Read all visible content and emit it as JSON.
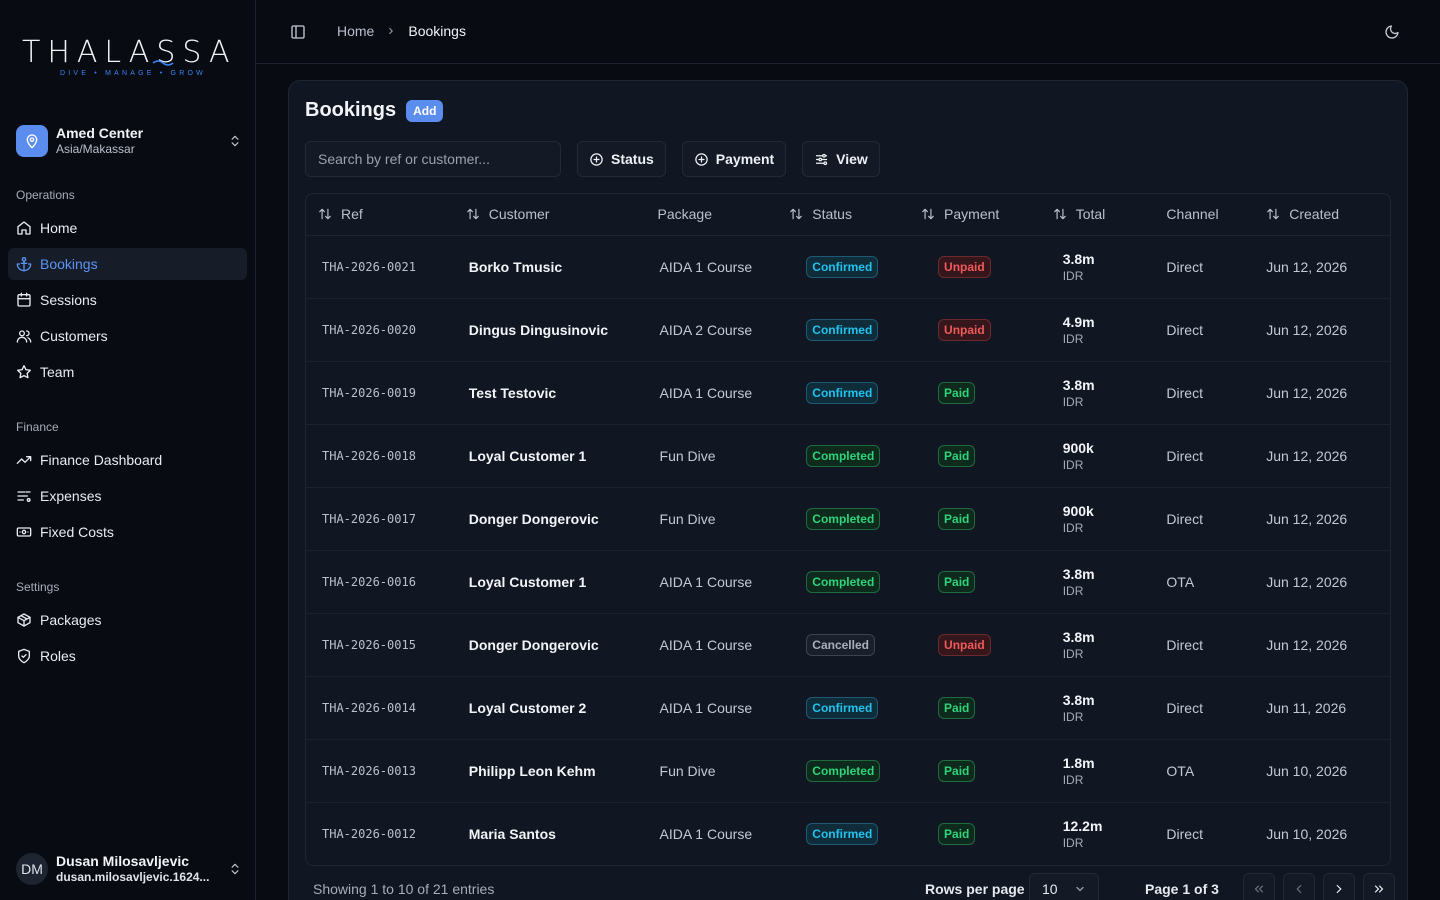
{
  "logo": {
    "wordmark": "THALASSA",
    "tagline": "DIVE • MANAGE • GROW"
  },
  "workspace": {
    "name": "Amed Center",
    "timezone": "Asia/Makassar"
  },
  "sidebar": {
    "sections": [
      {
        "label": "Operations",
        "items": [
          {
            "label": "Home",
            "icon": "home-icon"
          },
          {
            "label": "Bookings",
            "icon": "anchor-icon",
            "active": true
          },
          {
            "label": "Sessions",
            "icon": "calendar-icon"
          },
          {
            "label": "Customers",
            "icon": "users-icon"
          },
          {
            "label": "Team",
            "icon": "star-icon"
          }
        ]
      },
      {
        "label": "Finance",
        "items": [
          {
            "label": "Finance Dashboard",
            "icon": "trending-up-icon"
          },
          {
            "label": "Expenses",
            "icon": "receipt-icon"
          },
          {
            "label": "Fixed Costs",
            "icon": "banknote-icon"
          }
        ]
      },
      {
        "label": "Settings",
        "items": [
          {
            "label": "Packages",
            "icon": "package-icon"
          },
          {
            "label": "Roles",
            "icon": "shield-icon"
          }
        ]
      }
    ]
  },
  "user": {
    "initials": "DM",
    "name": "Dusan Milosavljevic",
    "email": "dusan.milosavljevic.1624..."
  },
  "breadcrumb": {
    "home": "Home",
    "current": "Bookings"
  },
  "page": {
    "title": "Bookings",
    "add_label": "Add"
  },
  "toolbar": {
    "search_placeholder": "Search by ref or customer...",
    "status_label": "Status",
    "payment_label": "Payment",
    "view_label": "View"
  },
  "table": {
    "columns": [
      "Ref",
      "Customer",
      "Package",
      "Status",
      "Payment",
      "Total",
      "Channel",
      "Created"
    ],
    "rows": [
      {
        "ref": "THA-2026-0021",
        "customer": "Borko Tmusic",
        "package": "AIDA 1 Course",
        "status": "Confirmed",
        "payment": "Unpaid",
        "total": "3.8m",
        "currency": "IDR",
        "channel": "Direct",
        "created": "Jun 12, 2026"
      },
      {
        "ref": "THA-2026-0020",
        "customer": "Dingus Dingusinovic",
        "package": "AIDA 2 Course",
        "status": "Confirmed",
        "payment": "Unpaid",
        "total": "4.9m",
        "currency": "IDR",
        "channel": "Direct",
        "created": "Jun 12, 2026"
      },
      {
        "ref": "THA-2026-0019",
        "customer": "Test Testovic",
        "package": "AIDA 1 Course",
        "status": "Confirmed",
        "payment": "Paid",
        "total": "3.8m",
        "currency": "IDR",
        "channel": "Direct",
        "created": "Jun 12, 2026"
      },
      {
        "ref": "THA-2026-0018",
        "customer": "Loyal Customer 1",
        "package": "Fun Dive",
        "status": "Completed",
        "payment": "Paid",
        "total": "900k",
        "currency": "IDR",
        "channel": "Direct",
        "created": "Jun 12, 2026"
      },
      {
        "ref": "THA-2026-0017",
        "customer": "Donger Dongerovic",
        "package": "Fun Dive",
        "status": "Completed",
        "payment": "Paid",
        "total": "900k",
        "currency": "IDR",
        "channel": "Direct",
        "created": "Jun 12, 2026"
      },
      {
        "ref": "THA-2026-0016",
        "customer": "Loyal Customer 1",
        "package": "AIDA 1 Course",
        "status": "Completed",
        "payment": "Paid",
        "total": "3.8m",
        "currency": "IDR",
        "channel": "OTA",
        "created": "Jun 12, 2026"
      },
      {
        "ref": "THA-2026-0015",
        "customer": "Donger Dongerovic",
        "package": "AIDA 1 Course",
        "status": "Cancelled",
        "payment": "Unpaid",
        "total": "3.8m",
        "currency": "IDR",
        "channel": "Direct",
        "created": "Jun 12, 2026"
      },
      {
        "ref": "THA-2026-0014",
        "customer": "Loyal Customer 2",
        "package": "AIDA 1 Course",
        "status": "Confirmed",
        "payment": "Paid",
        "total": "3.8m",
        "currency": "IDR",
        "channel": "Direct",
        "created": "Jun 11, 2026"
      },
      {
        "ref": "THA-2026-0013",
        "customer": "Philipp Leon Kehm",
        "package": "Fun Dive",
        "status": "Completed",
        "payment": "Paid",
        "total": "1.8m",
        "currency": "IDR",
        "channel": "OTA",
        "created": "Jun 10, 2026"
      },
      {
        "ref": "THA-2026-0012",
        "customer": "Maria Santos",
        "package": "AIDA 1 Course",
        "status": "Confirmed",
        "payment": "Paid",
        "total": "12.2m",
        "currency": "IDR",
        "channel": "Direct",
        "created": "Jun 10, 2026"
      }
    ]
  },
  "footer": {
    "showing": "Showing 1 to 10 of 21 entries",
    "rows_per_page_label": "Rows per page",
    "rows_per_page_value": "10",
    "page_label": "Page 1 of 3"
  },
  "colors": {
    "accent": "#5b8def",
    "confirmed": "#22c3ee",
    "completed": "#2ed47a",
    "unpaid": "#f05a5a",
    "cancelled": "#a8b0bd"
  }
}
